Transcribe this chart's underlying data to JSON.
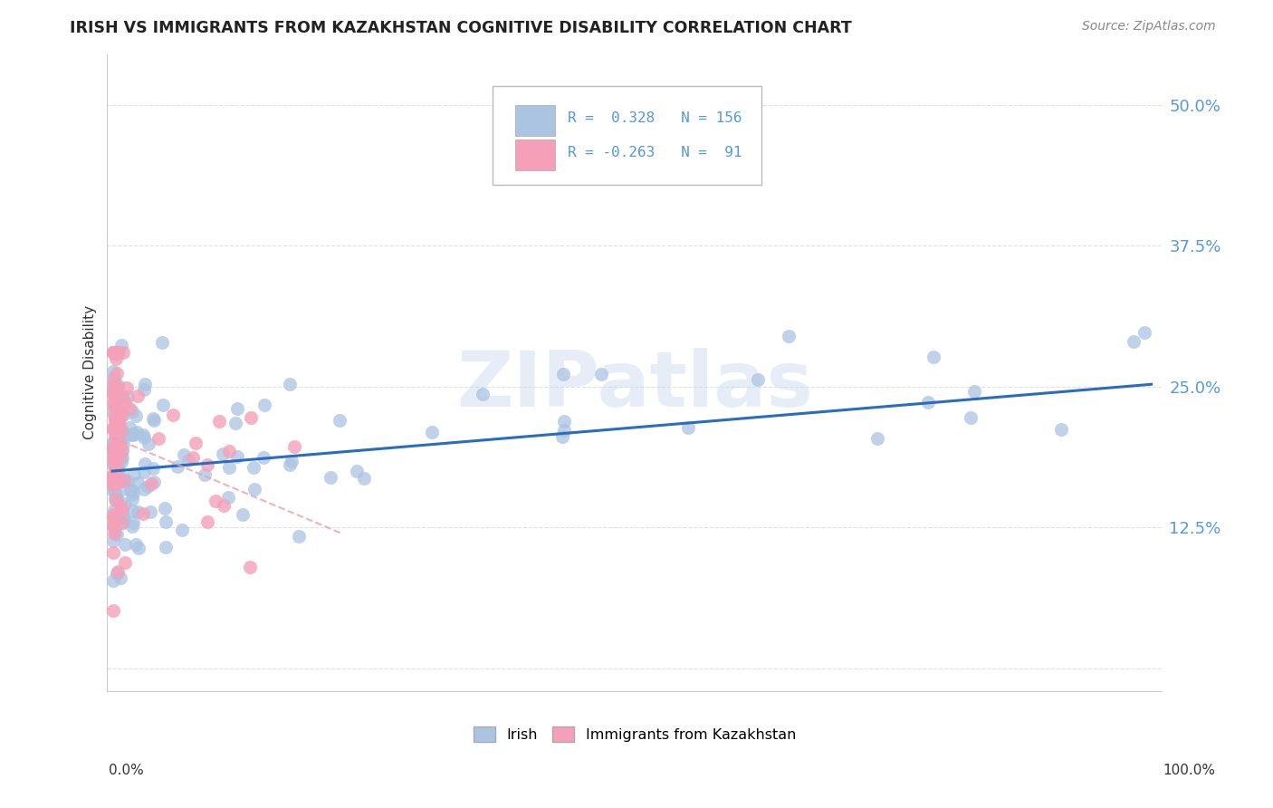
{
  "title": "IRISH VS IMMIGRANTS FROM KAZAKHSTAN COGNITIVE DISABILITY CORRELATION CHART",
  "source": "Source: ZipAtlas.com",
  "ylabel": "Cognitive Disability",
  "legend_irish_R": "0.328",
  "legend_irish_N": "156",
  "legend_kaz_R": "-0.263",
  "legend_kaz_N": "91",
  "irish_color": "#aac4e2",
  "kaz_color": "#f5a0b8",
  "irish_line_color": "#2b6cbf",
  "kaz_line_color": "#e8a0b0",
  "background_color": "#ffffff",
  "grid_color": "#cccccc",
  "watermark": "ZIPatlas",
  "ytick_color": "#5599dd",
  "yticks": [
    0.0,
    0.125,
    0.25,
    0.375,
    0.5
  ],
  "ytick_labels": [
    "",
    "12.5%",
    "25.0%",
    "37.5%",
    "50.0%"
  ]
}
